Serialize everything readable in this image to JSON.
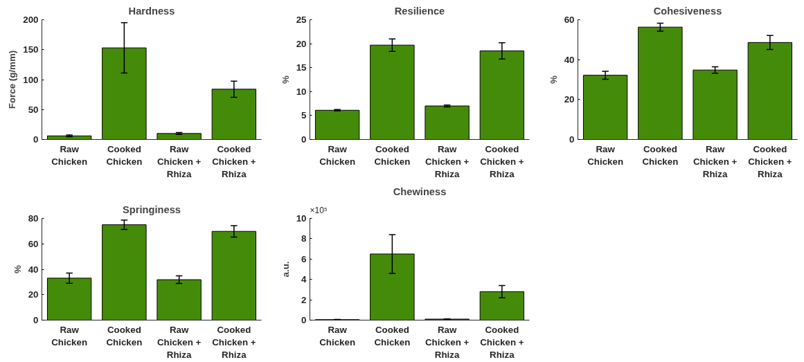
{
  "chart_data": [
    {
      "type": "bar",
      "title": "Hardness",
      "ylabel": "Force (g/mm)",
      "categories": [
        "Raw Chicken",
        "Cooked Chicken",
        "Raw Chicken + Rhiza",
        "Cooked Chicken + Rhiza"
      ],
      "values": [
        6,
        153,
        10,
        84
      ],
      "errors": [
        1.5,
        42,
        1.5,
        13.5
      ],
      "color": "#458b0a",
      "ylim": [
        0,
        200
      ],
      "yticks": [
        0,
        50,
        100,
        150,
        200
      ],
      "grid": false
    },
    {
      "type": "bar",
      "title": "Resilience",
      "ylabel": "%",
      "categories": [
        "Raw Chicken",
        "Cooked Chicken",
        "Raw Chicken + Rhiza",
        "Cooked Chicken + Rhiza"
      ],
      "values": [
        6.1,
        19.7,
        7.0,
        18.5
      ],
      "errors": [
        0.15,
        1.3,
        0.2,
        1.7
      ],
      "color": "#458b0a",
      "ylim": [
        0,
        25
      ],
      "yticks": [
        0,
        5,
        10,
        15,
        20,
        25
      ],
      "grid": false
    },
    {
      "type": "bar",
      "title": "Cohesiveness",
      "ylabel": "%",
      "categories": [
        "Raw Chicken",
        "Cooked Chicken",
        "Raw Chicken + Rhiza",
        "Cooked Chicken + Rhiza"
      ],
      "values": [
        32.2,
        56.3,
        34.8,
        48.6
      ],
      "errors": [
        2,
        2,
        1.6,
        3.5
      ],
      "color": "#458b0a",
      "ylim": [
        0,
        60
      ],
      "yticks": [
        0,
        20,
        40,
        60
      ],
      "grid": false
    },
    {
      "type": "bar",
      "title": "Springiness",
      "ylabel": "%",
      "categories": [
        "Raw Chicken",
        "Cooked Chicken",
        "Raw Chicken + Rhiza",
        "Cooked Chicken + Rhiza"
      ],
      "values": [
        33,
        75,
        31.8,
        69.8
      ],
      "errors": [
        4,
        3.7,
        3,
        4.5
      ],
      "color": "#458b0a",
      "ylim": [
        0,
        80
      ],
      "yticks": [
        0,
        20,
        40,
        60,
        80
      ],
      "grid": false
    },
    {
      "type": "bar",
      "title": "Chewiness",
      "ylabel": "a.u.",
      "categories": [
        "Raw Chicken",
        "Cooked Chicken",
        "Raw Chicken + Rhiza",
        "Cooked Chicken + Rhiza"
      ],
      "values": [
        0.05,
        6.5,
        0.1,
        2.8
      ],
      "errors": [
        0.01,
        1.9,
        0.02,
        0.6
      ],
      "color": "#458b0a",
      "ylim": [
        0,
        10
      ],
      "yticks": [
        0,
        2,
        4,
        6,
        8,
        10
      ],
      "annotations": [
        "×10⁵"
      ],
      "grid": false
    }
  ]
}
